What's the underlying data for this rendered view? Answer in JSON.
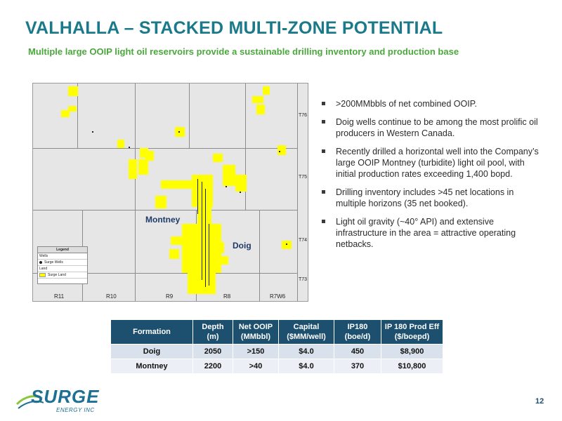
{
  "slide": {
    "title": "VALHALLA – STACKED MULTI-ZONE POTENTIAL",
    "subtitle": "Multiple large OOIP light oil reservoirs provide a sustainable drilling inventory and production base",
    "page_number": "12"
  },
  "map": {
    "townships": [
      "T76",
      "T75",
      "T74",
      "T73"
    ],
    "ranges": [
      "R11",
      "R10",
      "R9",
      "R8",
      "R7W6"
    ],
    "labels": {
      "montney": "Montney",
      "doig": "Doig"
    },
    "legend": {
      "title": "Legend",
      "wells_header": "Wells",
      "well_item": "Surge Wells",
      "land_header": "Land",
      "land_item": "Surge Land"
    },
    "land_color": "#ffff00"
  },
  "bullets": [
    ">200MMbbls of net combined OOIP.",
    "Doig wells continue to be among the most prolific oil producers in Western Canada.",
    "Recently drilled a horizontal well into the Company’s large OOIP Montney (turbidite) light oil pool, with initial production rates exceeding 1,400 bopd.",
    "Drilling inventory includes >45 net locations in multiple horizons (35 net booked).",
    "Light oil gravity (~40° API) and extensive infrastructure in the area = attractive operating netbacks."
  ],
  "table": {
    "headers": [
      [
        "Formation",
        ""
      ],
      [
        "Depth",
        "(m)"
      ],
      [
        "Net OOIP",
        "(MMbbl)"
      ],
      [
        "Capital",
        "($MM/well)"
      ],
      [
        "IP180",
        "(boe/d)"
      ],
      [
        "IP 180 Prod Eff",
        "($/boepd)"
      ]
    ],
    "rows": [
      [
        "Doig",
        "2050",
        ">150",
        "$4.0",
        "450",
        "$8,900"
      ],
      [
        "Montney",
        "2200",
        ">40",
        "$4.0",
        "370",
        "$10,800"
      ]
    ]
  },
  "logo": {
    "name": "SURGE",
    "sub": "ENERGY INC"
  },
  "colors": {
    "title": "#1a7a8a",
    "subtitle": "#4aa83c",
    "table_header": "#1d4f6e"
  }
}
